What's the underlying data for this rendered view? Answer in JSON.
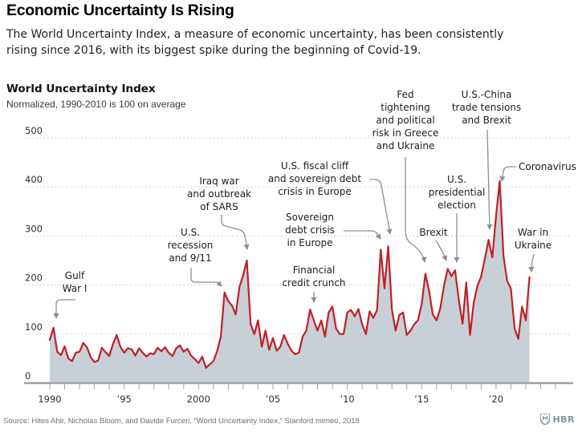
{
  "header": {
    "title": "Economic Uncertainty Is Rising",
    "subtitle_lines": [
      "The World Uncertainty Index, a measure of economic uncertainty, has been consistently",
      "rising since 2016, with its biggest spike during the beginning of Covid-19."
    ]
  },
  "chart_header": {
    "title": "World Uncertainty Index",
    "subtitle": "Normalized, 1990-2010 is 100 on average"
  },
  "footer": {
    "source": "Source: Hites Ahir, Nicholas Bloom, and Davide Furceri, “World Uncertainty Index,” Stanford mimeo, 2018",
    "brand": "HBR"
  },
  "chart_data": {
    "type": "area",
    "title": "World Uncertainty Index",
    "subtitle": "Normalized, 1990-2010 is 100 on average",
    "x_start": 1990,
    "x_step": 0.25,
    "x_end": 2022.25,
    "xlim": [
      1989.5,
      2024.5
    ],
    "ylim": [
      0,
      500
    ],
    "grid": "dotted horizontal",
    "y_ticks": [
      0,
      100,
      200,
      300,
      400,
      500
    ],
    "x_ticks": [
      {
        "year": 1990,
        "label": "1990"
      },
      {
        "year": 1995,
        "label": "’95"
      },
      {
        "year": 2000,
        "label": "2000"
      },
      {
        "year": 2005,
        "label": "’05"
      },
      {
        "year": 2010,
        "label": "’10"
      },
      {
        "year": 2015,
        "label": "’15"
      },
      {
        "year": 2020,
        "label": "’20"
      }
    ],
    "line_color": "#bf2026",
    "fill_color": "#c8d0d7",
    "axis_color": "#9aa1a7",
    "values": [
      88,
      113,
      64,
      57,
      75,
      50,
      45,
      62,
      64,
      82,
      73,
      53,
      43,
      46,
      72,
      63,
      55,
      80,
      98,
      74,
      62,
      71,
      69,
      56,
      71,
      62,
      54,
      61,
      59,
      72,
      65,
      73,
      62,
      55,
      71,
      77,
      64,
      70,
      56,
      49,
      41,
      54,
      31,
      38,
      45,
      65,
      95,
      185,
      167,
      158,
      140,
      196,
      220,
      250,
      120,
      100,
      128,
      74,
      107,
      68,
      92,
      66,
      74,
      98,
      80,
      66,
      59,
      62,
      95,
      107,
      150,
      128,
      107,
      128,
      95,
      144,
      156,
      111,
      100,
      100,
      144,
      149,
      136,
      151,
      120,
      100,
      146,
      133,
      149,
      272,
      193,
      279,
      150,
      107,
      139,
      144,
      98,
      107,
      120,
      128,
      161,
      223,
      188,
      140,
      128,
      152,
      198,
      233,
      218,
      230,
      169,
      121,
      205,
      98,
      164,
      198,
      218,
      254,
      292,
      256,
      341,
      412,
      259,
      208,
      193,
      111,
      90,
      156,
      128,
      216
    ],
    "annotations": [
      {
        "id": "gulf-war",
        "text": "Gulf\nWar I",
        "x": 93,
        "y": 336
      },
      {
        "id": "us-recession",
        "text": "U.S.\nrecession\nand 9/11",
        "x": 237,
        "y": 282
      },
      {
        "id": "iraq-sars",
        "text": "Iraq war\nand outbreak\nof SARS",
        "x": 273,
        "y": 218
      },
      {
        "id": "fiscal-cliff",
        "text": "U.S. fiscal cliff\nand sovereign debt\ncrisis in Europe",
        "x": 392,
        "y": 199
      },
      {
        "id": "sovereign-debt",
        "text": "Sovereign\ndebt crisis\nin Europe",
        "x": 386,
        "y": 263
      },
      {
        "id": "financial-crunch",
        "text": "Financial\ncredit crunch",
        "x": 391,
        "y": 329
      },
      {
        "id": "fed-tightening",
        "text": "Fed\ntightening\nand political\nrisk in Greece\nand Ukraine",
        "x": 505,
        "y": 110
      },
      {
        "id": "brexit",
        "text": "Brexit",
        "x": 540,
        "y": 282
      },
      {
        "id": "election",
        "text": "U.S.\npresidential\nelection",
        "x": 569,
        "y": 216
      },
      {
        "id": "trade-tensions",
        "text": "U.S.-China\ntrade tensions\nand Brexit",
        "x": 606,
        "y": 110
      },
      {
        "id": "coronavirus",
        "text": "Coronavirus",
        "x": 646,
        "y": 200,
        "align": "left"
      },
      {
        "id": "war-ukraine",
        "text": "War in\nUkraine",
        "x": 664,
        "y": 282
      }
    ]
  }
}
